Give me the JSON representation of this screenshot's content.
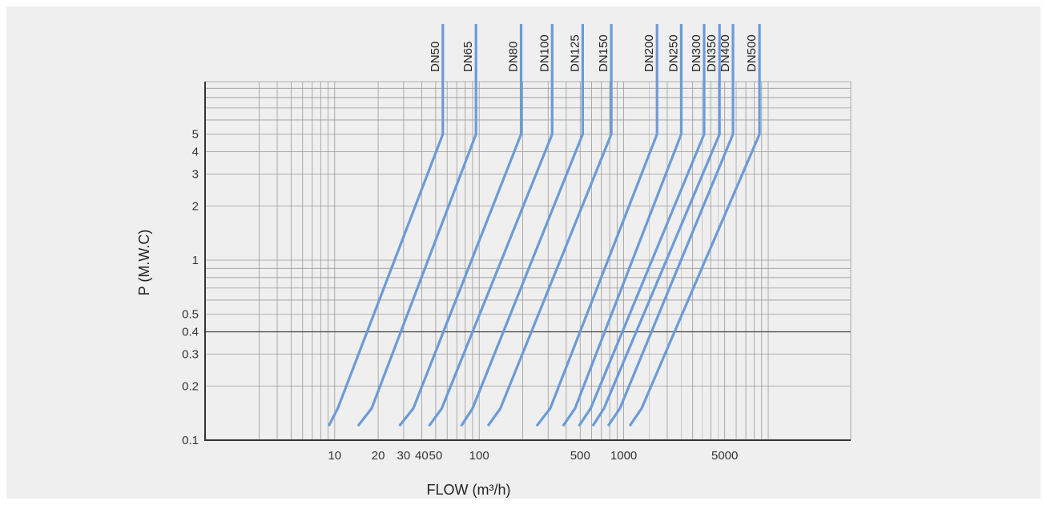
{
  "chart_data": {
    "type": "line",
    "xlabel": "FLOW (m³/h)",
    "ylabel": "P (M.W.C)",
    "x_scale": "log",
    "y_scale": "log",
    "xlim": [
      3,
      12000
    ],
    "ylim": [
      0.1,
      30
    ],
    "x_tick_labels": [
      {
        "value": 10,
        "label": "10"
      },
      {
        "value": 20,
        "label": "20"
      },
      {
        "value": 30,
        "label": "30"
      },
      {
        "value": 40,
        "label": "40"
      },
      {
        "value": 50,
        "label": "50"
      },
      {
        "value": 100,
        "label": "100"
      },
      {
        "value": 500,
        "label": "500"
      },
      {
        "value": 1000,
        "label": "1000"
      },
      {
        "value": 5000,
        "label": "5000"
      }
    ],
    "y_tick_labels": [
      {
        "value": 0.1,
        "label": "0.1"
      },
      {
        "value": 0.2,
        "label": "0.2"
      },
      {
        "value": 0.3,
        "label": "0.3"
      },
      {
        "value": 0.4,
        "label": "0.4"
      },
      {
        "value": 0.5,
        "label": "0.5"
      },
      {
        "value": 1,
        "label": "1"
      },
      {
        "value": 2,
        "label": "2"
      },
      {
        "value": 3,
        "label": "3"
      },
      {
        "value": 4,
        "label": "4"
      },
      {
        "value": 5,
        "label": "5"
      }
    ],
    "grid": true,
    "line_color": "#6b9bd8",
    "series": [
      {
        "name": "DN50",
        "points": [
          [
            9.1,
            0.12
          ],
          [
            10.5,
            0.15
          ],
          [
            56,
            5
          ],
          [
            56,
            30
          ]
        ]
      },
      {
        "name": "DN65",
        "points": [
          [
            14.5,
            0.12
          ],
          [
            18,
            0.15
          ],
          [
            95,
            5
          ],
          [
            95,
            30
          ]
        ]
      },
      {
        "name": "DN80",
        "points": [
          [
            28,
            0.12
          ],
          [
            35,
            0.15
          ],
          [
            195,
            5
          ],
          [
            195,
            30
          ]
        ]
      },
      {
        "name": "DN100",
        "points": [
          [
            45,
            0.12
          ],
          [
            55,
            0.15
          ],
          [
            320,
            5
          ],
          [
            320,
            30
          ]
        ]
      },
      {
        "name": "DN125",
        "points": [
          [
            75,
            0.12
          ],
          [
            90,
            0.15
          ],
          [
            520,
            5
          ],
          [
            520,
            30
          ]
        ]
      },
      {
        "name": "DN150",
        "points": [
          [
            115,
            0.12
          ],
          [
            140,
            0.15
          ],
          [
            820,
            5
          ],
          [
            820,
            30
          ]
        ]
      },
      {
        "name": "DN200",
        "points": [
          [
            250,
            0.12
          ],
          [
            310,
            0.15
          ],
          [
            1700,
            5
          ],
          [
            1700,
            30
          ]
        ]
      },
      {
        "name": "DN250",
        "points": [
          [
            380,
            0.12
          ],
          [
            460,
            0.15
          ],
          [
            2500,
            5
          ],
          [
            2500,
            30
          ]
        ]
      },
      {
        "name": "DN300",
        "points": [
          [
            490,
            0.12
          ],
          [
            590,
            0.15
          ],
          [
            3600,
            5
          ],
          [
            3600,
            30
          ]
        ]
      },
      {
        "name": "DN350",
        "points": [
          [
            610,
            0.12
          ],
          [
            730,
            0.15
          ],
          [
            4600,
            5
          ],
          [
            4600,
            30
          ]
        ]
      },
      {
        "name": "DN400",
        "points": [
          [
            780,
            0.12
          ],
          [
            940,
            0.15
          ],
          [
            5700,
            5
          ],
          [
            5700,
            30
          ]
        ]
      },
      {
        "name": "DN500",
        "points": [
          [
            1100,
            0.12
          ],
          [
            1330,
            0.15
          ],
          [
            8700,
            5
          ],
          [
            8700,
            30
          ]
        ]
      }
    ]
  }
}
